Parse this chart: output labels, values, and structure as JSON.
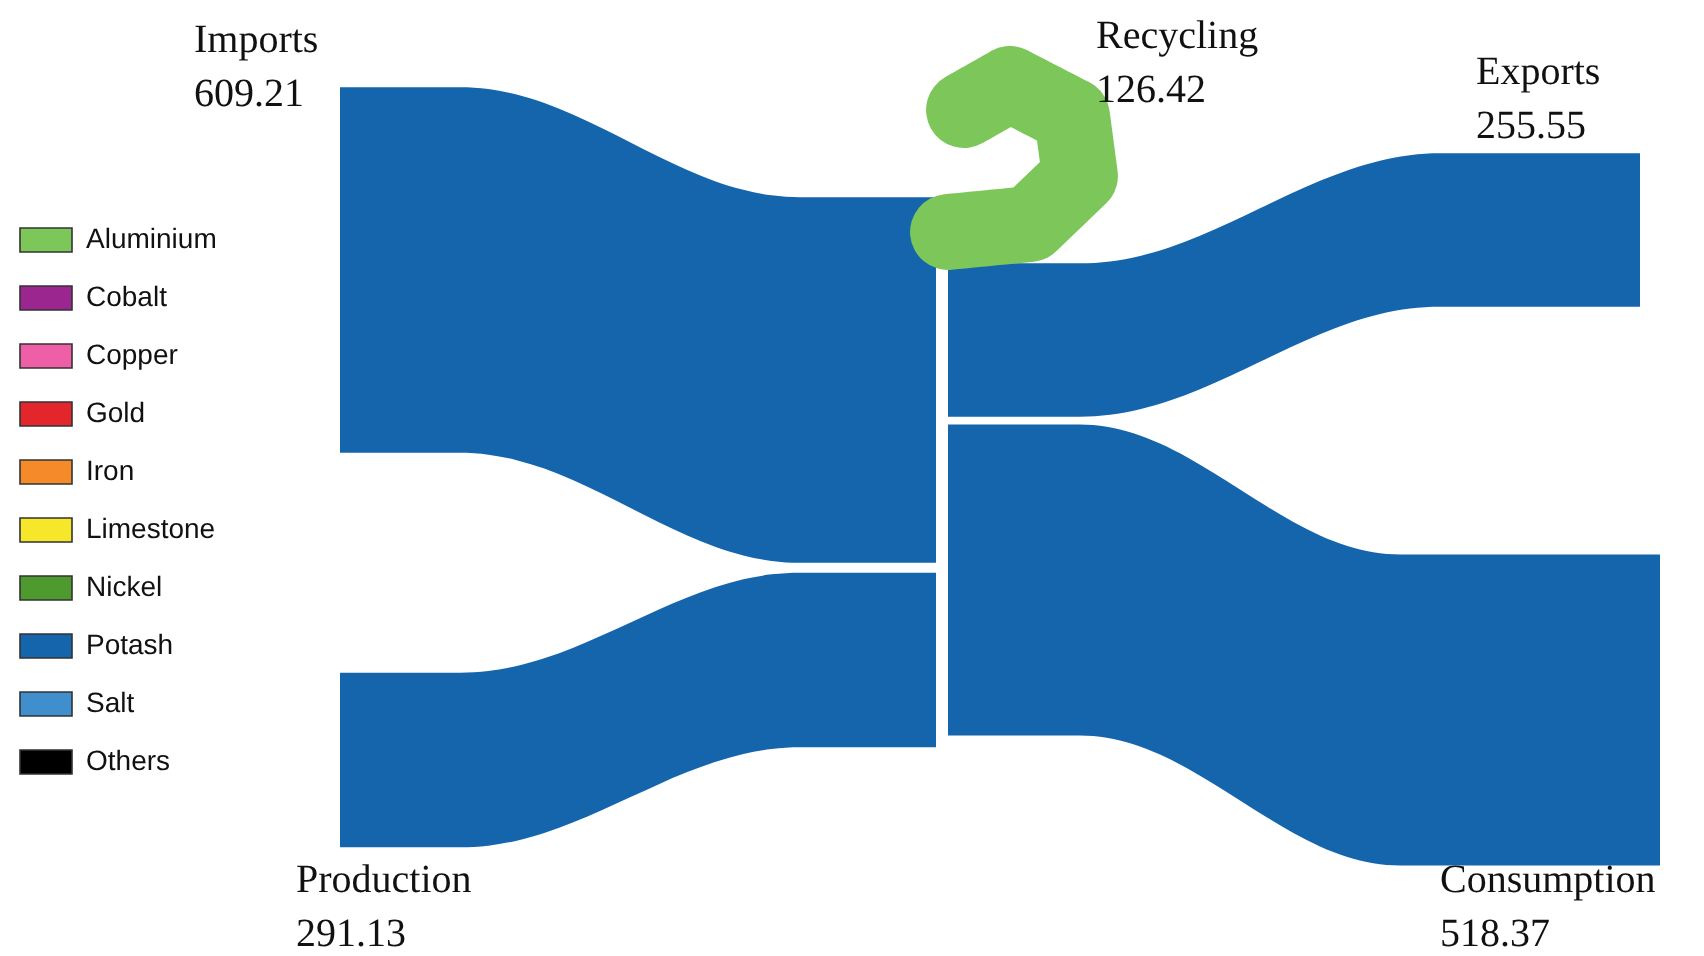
{
  "chart_data": {
    "type": "other",
    "categories": [
      "Imports",
      "Production",
      "Recycling",
      "Exports",
      "Consumption"
    ],
    "values": [
      609.21,
      291.13,
      126.42,
      255.55,
      518.37
    ],
    "value_labels": [
      "609.21",
      "291.13",
      "126.42",
      "255.55",
      "518.37"
    ],
    "colors": [
      "#1565ad",
      "#1565ad",
      "#7dc75a",
      "#1565ad",
      "#1565ad"
    ],
    "series": [
      {
        "name": "Aluminium",
        "color": "#7dc75a",
        "values": [
          null,
          null,
          null,
          null,
          null
        ]
      },
      {
        "name": "Cobalt",
        "color": "#9b268f",
        "values": [
          null,
          null,
          null,
          null,
          null
        ]
      },
      {
        "name": "Copper",
        "color": "#ee5fa7",
        "values": [
          null,
          null,
          null,
          null,
          null
        ]
      },
      {
        "name": "Gold",
        "color": "#e2262b",
        "values": [
          null,
          null,
          null,
          null,
          null
        ]
      },
      {
        "name": "Iron",
        "color": "#f58a2a",
        "values": [
          null,
          null,
          null,
          null,
          null
        ]
      },
      {
        "name": "Limestone",
        "color": "#f6e72a",
        "values": [
          null,
          null,
          null,
          null,
          null
        ]
      },
      {
        "name": "Nickel",
        "color": "#4e9a2f",
        "values": [
          null,
          null,
          null,
          null,
          null
        ]
      },
      {
        "name": "Potash",
        "color": "#1565ad",
        "values": [
          null,
          null,
          null,
          null,
          null
        ]
      },
      {
        "name": "Salt",
        "color": "#3f8fcf",
        "values": [
          null,
          null,
          null,
          null,
          null
        ]
      },
      {
        "name": "Others",
        "color": "#000000",
        "values": [
          null,
          null,
          null,
          null,
          null
        ]
      }
    ],
    "legend": "left"
  }
}
